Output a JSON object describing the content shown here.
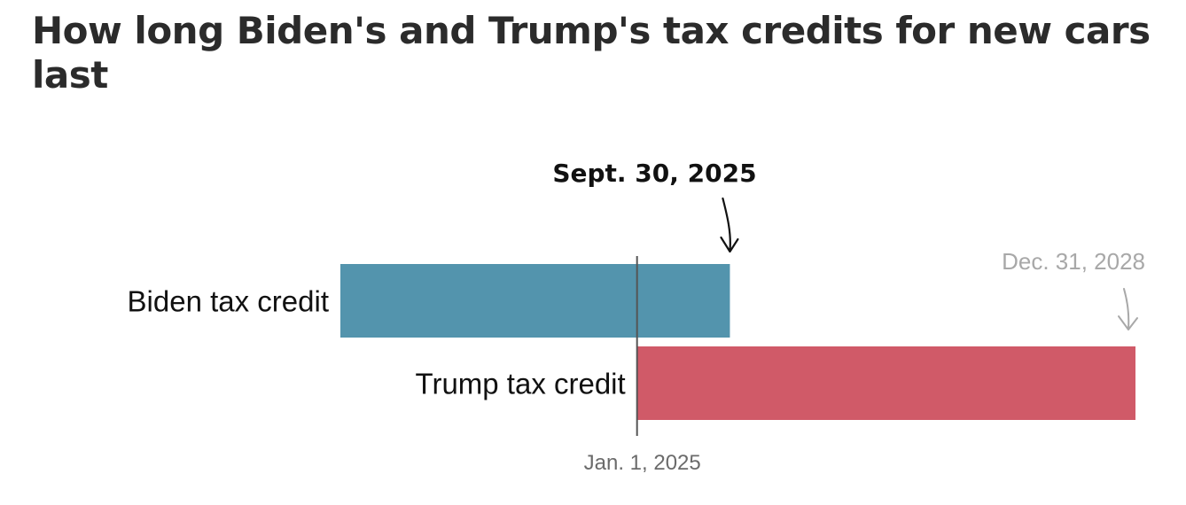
{
  "chart_data": {
    "type": "bar",
    "title": "How long Biden's and Trump's tax credits for new cars last",
    "categories": [
      "Biden tax credit",
      "Trump tax credit"
    ],
    "series": [
      {
        "start": "2022-08-16",
        "end": "2025-09-30",
        "color": "#5394ad"
      },
      {
        "start": "2025-01-01",
        "end": "2028-12-31",
        "color": "#d05a68"
      }
    ],
    "x_domain": [
      "2022-08-16",
      "2028-12-31"
    ],
    "reference_line": {
      "date": "2025-01-01",
      "label": "Jan. 1, 2025"
    },
    "annotations": [
      {
        "date": "2025-09-30",
        "label": "Sept. 30, 2025",
        "emphasis": "strong"
      },
      {
        "date": "2028-12-31",
        "label": "Dec. 31, 2028",
        "emphasis": "light"
      }
    ],
    "grid": false,
    "legend": "none"
  }
}
